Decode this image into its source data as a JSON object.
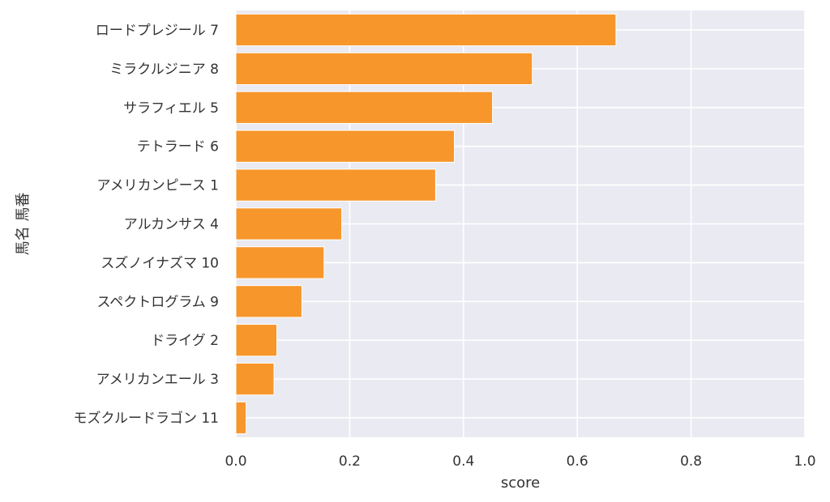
{
  "chart_data": {
    "type": "bar",
    "orientation": "horizontal",
    "categories": [
      "ロードプレジール 7",
      "ミラクルジニア 8",
      "サラフィエル 5",
      "テトラード 6",
      "アメリカンピース 1",
      "アルカンサス 4",
      "スズノイナズマ 10",
      "スペクトログラム 9",
      "ドライグ 2",
      "アメリカンエール 3",
      "モズクルードラゴン 11"
    ],
    "values": [
      0.668,
      0.521,
      0.451,
      0.384,
      0.351,
      0.186,
      0.155,
      0.116,
      0.072,
      0.067,
      0.018
    ],
    "xlabel": "score",
    "ylabel": "馬名 馬番",
    "xlim": [
      0.0,
      1.0
    ],
    "xticks": [
      "0.0",
      "0.2",
      "0.4",
      "0.6",
      "0.8",
      "1.0"
    ],
    "grid": true,
    "colors": {
      "bar": "#f7962b",
      "bar_edge": "#ffffff",
      "plot_background": "#eaeaf2",
      "grid": "#ffffff"
    }
  }
}
